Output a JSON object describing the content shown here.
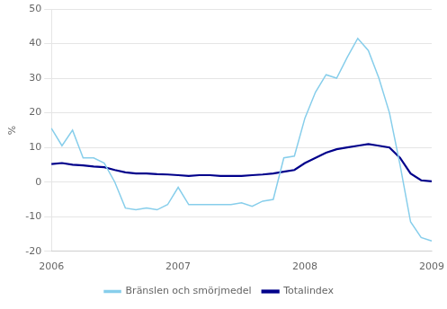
{
  "chart_data": {
    "type": "line",
    "ylabel": "%",
    "categories": [
      "2006",
      null,
      null,
      null,
      null,
      null,
      null,
      null,
      null,
      null,
      null,
      null,
      "2007",
      null,
      null,
      null,
      null,
      null,
      null,
      null,
      null,
      null,
      null,
      null,
      "2008",
      null,
      null,
      null,
      null,
      null,
      null,
      null,
      null,
      null,
      null,
      null,
      "2009"
    ],
    "series": [
      {
        "name": "Bränslen och smörjmedel",
        "color": "#87CEEB",
        "values": [
          15.5,
          10.5,
          15.0,
          7.0,
          7.0,
          5.5,
          0.0,
          -7.5,
          -8.0,
          -7.5,
          -8.0,
          -6.5,
          -1.5,
          -6.5,
          -6.5,
          -6.5,
          -6.5,
          -6.5,
          -6.0,
          -7.0,
          -5.5,
          -5.0,
          7.0,
          7.5,
          18.5,
          26.0,
          31.0,
          30.0,
          36.0,
          41.5,
          38.0,
          30.0,
          20.0,
          5.0,
          -11.5,
          -16.0,
          -17.0
        ]
      },
      {
        "name": "Totalindex",
        "color": "#00008B",
        "values": [
          5.2,
          5.5,
          5.0,
          4.8,
          4.5,
          4.3,
          3.5,
          2.8,
          2.5,
          2.5,
          2.3,
          2.2,
          2.0,
          1.8,
          2.0,
          2.0,
          1.8,
          1.8,
          1.8,
          2.0,
          2.2,
          2.5,
          3.0,
          3.5,
          5.5,
          7.0,
          8.5,
          9.5,
          10.0,
          10.5,
          11.0,
          10.5,
          10.0,
          7.0,
          2.5,
          0.5,
          0.2
        ]
      }
    ],
    "ylim": [
      -20,
      50
    ],
    "yticks": [
      -20,
      -10,
      0,
      10,
      20,
      30,
      40,
      50
    ],
    "grid": true,
    "legend": "bottom"
  }
}
